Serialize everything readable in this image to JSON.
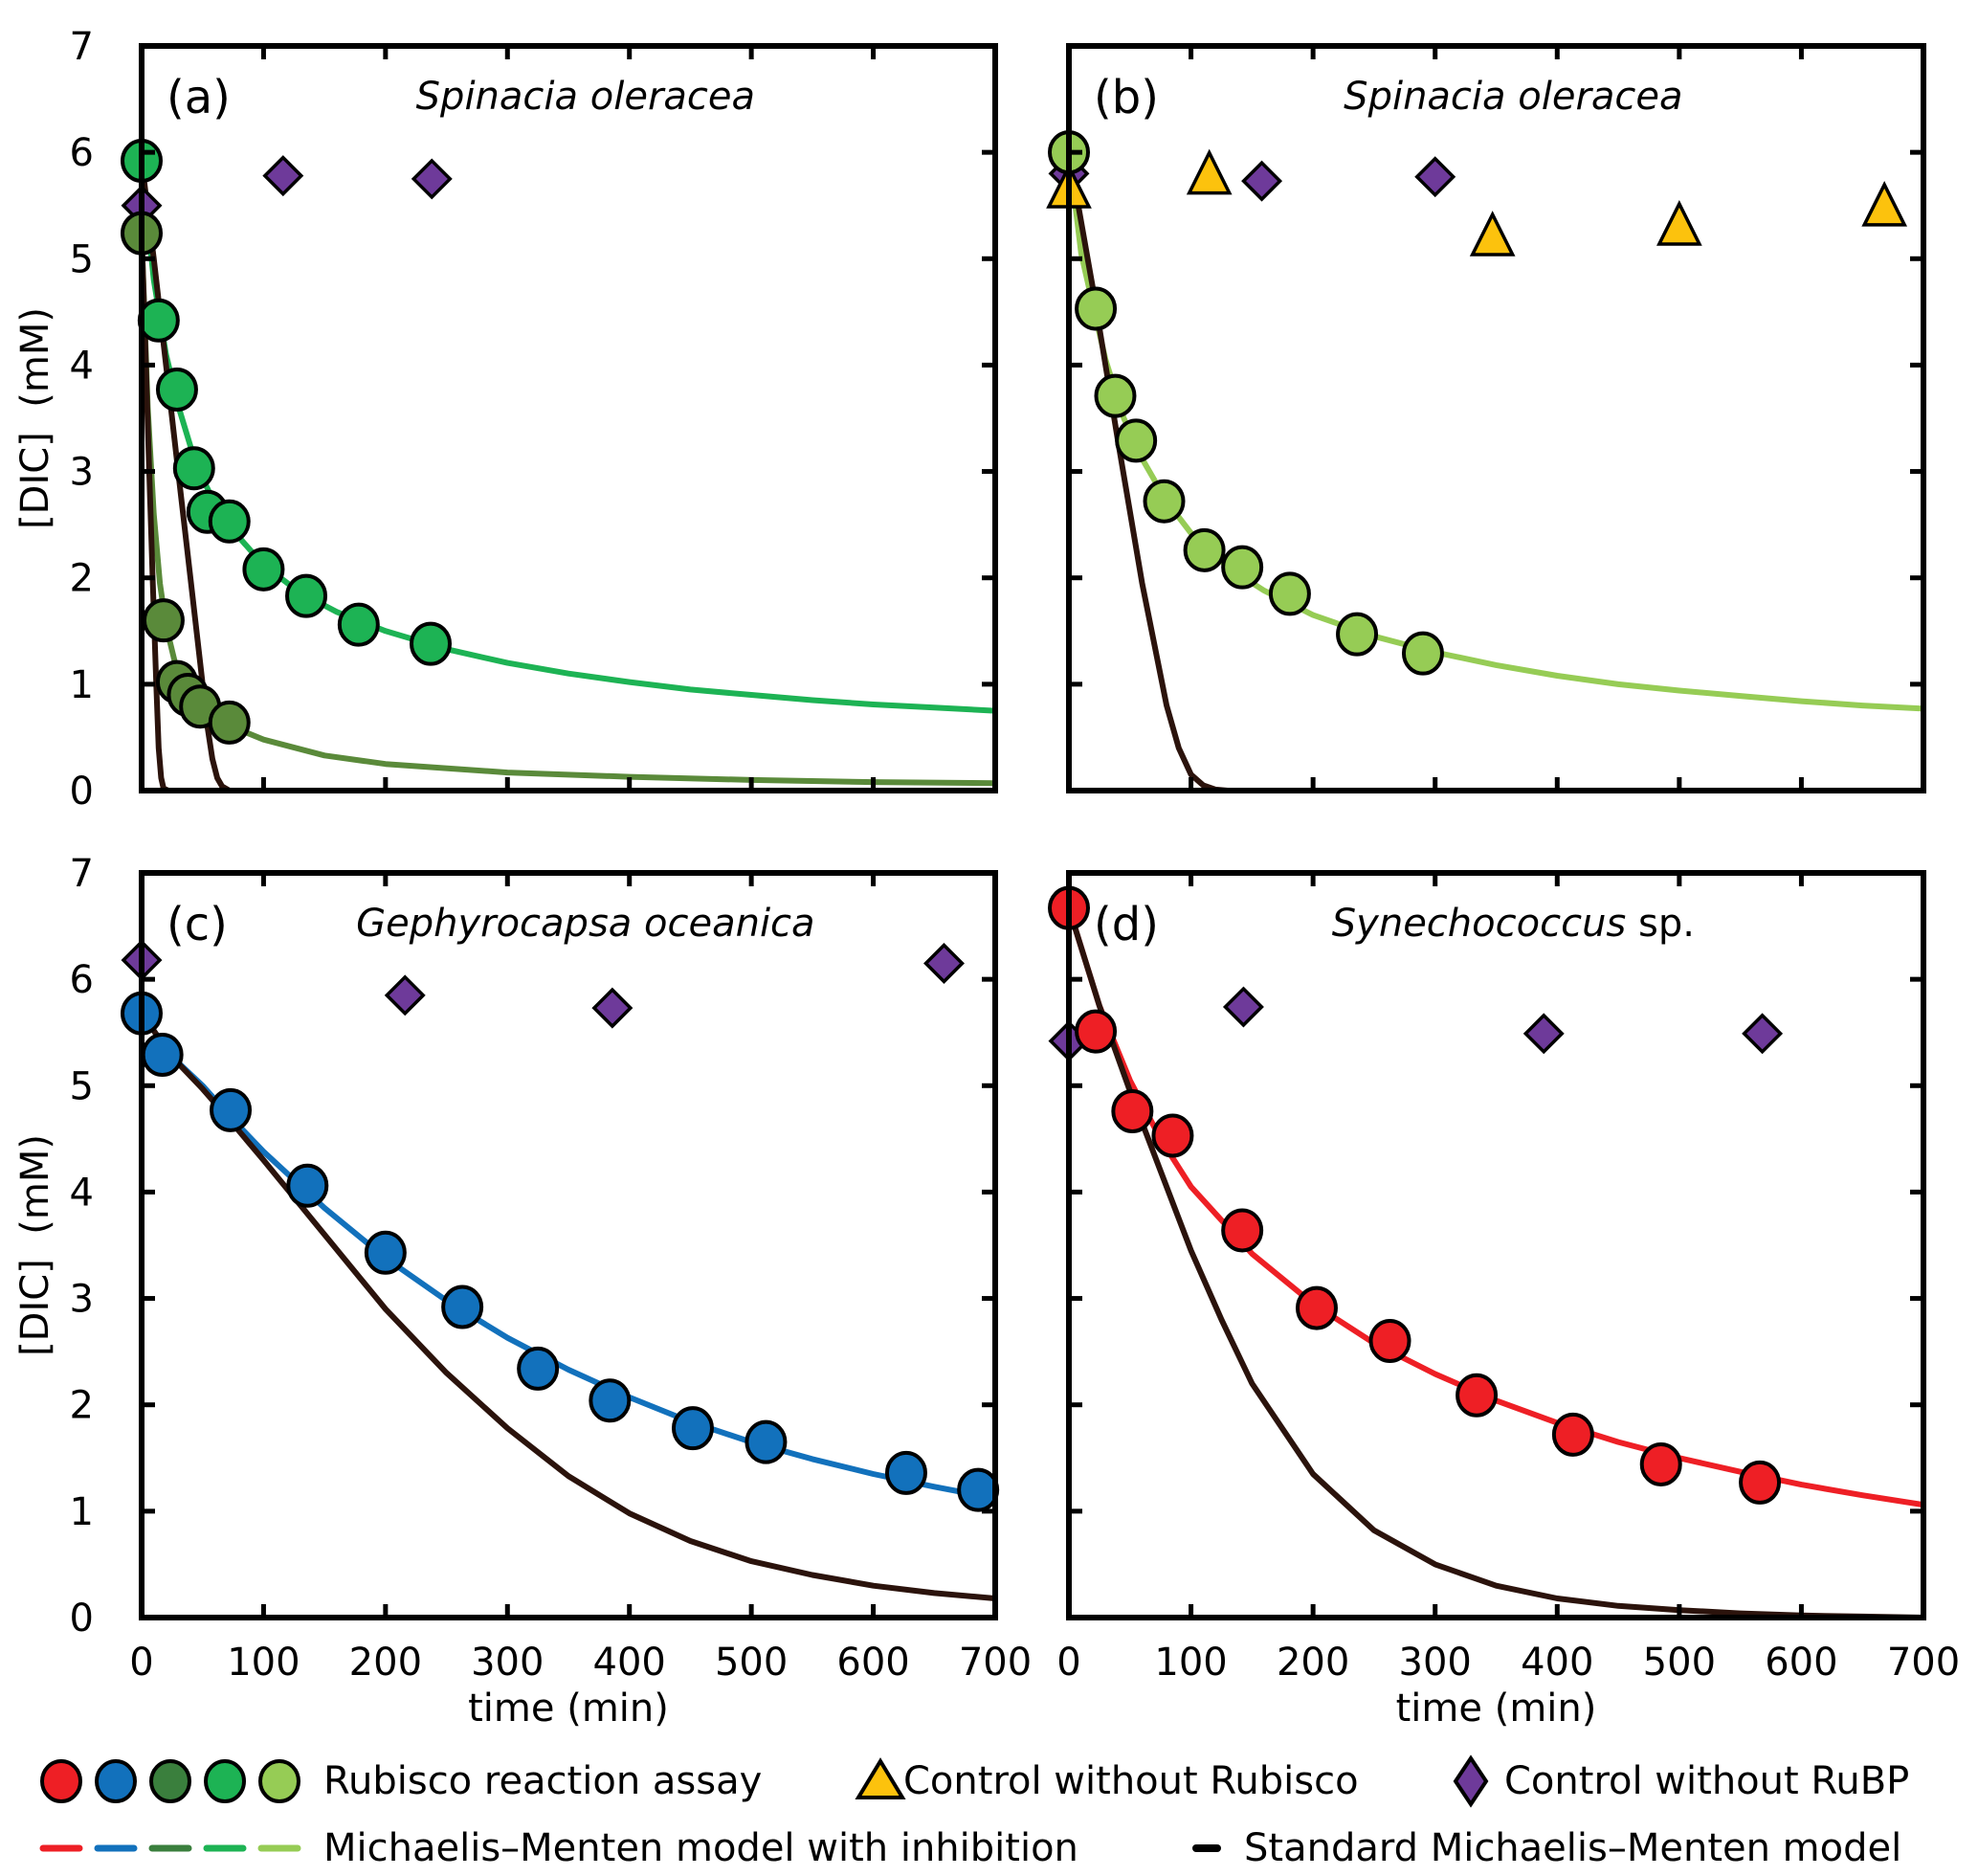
{
  "figure": {
    "legend": {
      "row1": {
        "circles_label": "Rubisco reaction assay",
        "triangle_label": "Control without Rubisco",
        "diamond_label": "Control without RuBP"
      },
      "row2": {
        "inhibition_label": "Michaelis–Menten model with inhibition",
        "standard_label": "Standard Michaelis–Menten model"
      },
      "circle_colors": [
        "#ee1f25",
        "#1271bc",
        "#3a7f3d",
        "#1db354",
        "#96cc55"
      ]
    }
  },
  "colors": {
    "red": "#ee1f25",
    "blue": "#1271bc",
    "dark_green": "#3a7f3d",
    "dark_green_fill": "#5a8a3a",
    "green": "#1db354",
    "light_green": "#96cc55",
    "orange": "#fcc20d",
    "purple": "#6e3a9a",
    "standard_model": "#2b130c"
  },
  "chart_data": [
    {
      "id": "a",
      "type": "scatter",
      "panel_letter": "(a)",
      "title": "Spinacia oleracea",
      "title_italic": "Spinacia oleracea",
      "title_roman": "",
      "xlabel": "",
      "ylabel": "[DIC]  (mM)",
      "xlim": [
        0,
        700
      ],
      "ylim": [
        0,
        7
      ],
      "xticks": [
        0,
        100,
        200,
        300,
        400,
        500,
        600,
        700
      ],
      "yticks": [
        0,
        1,
        2,
        3,
        4,
        5,
        6,
        7
      ],
      "show_xticklabels": false,
      "show_yticklabels": true,
      "series": [
        {
          "name": "Rubisco reaction assay (bright green)",
          "kind": "circle",
          "color": "#1db354",
          "x": [
            0,
            14,
            29,
            43,
            54,
            72,
            100,
            135,
            178,
            237
          ],
          "y": [
            5.92,
            4.42,
            3.77,
            3.03,
            2.62,
            2.53,
            2.08,
            1.83,
            1.56,
            1.38
          ]
        },
        {
          "name": "Rubisco reaction assay (dark green)",
          "kind": "circle",
          "color": "#5a8a3a",
          "x": [
            0,
            18,
            29,
            38,
            48,
            72
          ],
          "y": [
            5.24,
            1.6,
            1.02,
            0.9,
            0.79,
            0.64
          ]
        },
        {
          "name": "Control without RuBP",
          "kind": "diamond",
          "color": "#6e3a9a",
          "x": [
            0,
            116,
            238
          ],
          "y": [
            5.5,
            5.78,
            5.75
          ]
        },
        {
          "name": "MM with inhibition (bright green)",
          "kind": "line",
          "color": "#1db354",
          "x": [
            0,
            10,
            20,
            30,
            45,
            60,
            80,
            100,
            130,
            160,
            200,
            250,
            300,
            350,
            400,
            450,
            500,
            550,
            600,
            650,
            700
          ],
          "y": [
            5.9,
            4.8,
            4.1,
            3.62,
            3.05,
            2.7,
            2.38,
            2.12,
            1.86,
            1.68,
            1.5,
            1.33,
            1.2,
            1.1,
            1.02,
            0.95,
            0.9,
            0.85,
            0.81,
            0.78,
            0.75
          ]
        },
        {
          "name": "MM with inhibition (dark green)",
          "kind": "line",
          "color": "#5a8a3a",
          "x": [
            0,
            5,
            10,
            15,
            20,
            30,
            40,
            50,
            70,
            100,
            150,
            200,
            300,
            400,
            500,
            600,
            700
          ],
          "y": [
            5.24,
            3.6,
            2.6,
            1.95,
            1.55,
            1.08,
            0.88,
            0.76,
            0.62,
            0.48,
            0.33,
            0.25,
            0.17,
            0.13,
            0.1,
            0.08,
            0.07
          ]
        },
        {
          "name": "Standard MM (fast)",
          "kind": "line",
          "color": "#2b130c",
          "x": [
            0,
            3,
            6,
            9,
            12,
            14,
            16,
            18,
            22,
            30
          ],
          "y": [
            5.24,
            4.2,
            3.1,
            2.0,
            1.0,
            0.4,
            0.12,
            0.02,
            0.0,
            0.0
          ]
        },
        {
          "name": "Standard MM (slow)",
          "kind": "line",
          "color": "#2b130c",
          "x": [
            0,
            10,
            20,
            30,
            40,
            48,
            54,
            58,
            62,
            66,
            72,
            80
          ],
          "y": [
            5.92,
            5.0,
            4.0,
            3.0,
            2.0,
            1.2,
            0.6,
            0.3,
            0.12,
            0.04,
            0.0,
            0.0
          ]
        }
      ]
    },
    {
      "id": "b",
      "type": "scatter",
      "panel_letter": "(b)",
      "title": "Spinacia oleracea",
      "title_italic": "Spinacia oleracea",
      "title_roman": "",
      "xlabel": "",
      "ylabel": "",
      "xlim": [
        0,
        700
      ],
      "ylim": [
        0,
        7
      ],
      "xticks": [
        0,
        100,
        200,
        300,
        400,
        500,
        600,
        700
      ],
      "yticks": [
        0,
        1,
        2,
        3,
        4,
        5,
        6,
        7
      ],
      "show_xticklabels": false,
      "show_yticklabels": false,
      "series": [
        {
          "name": "Control without RuBP",
          "kind": "diamond",
          "color": "#6e3a9a",
          "x": [
            0,
            158,
            300
          ],
          "y": [
            5.8,
            5.73,
            5.77
          ]
        },
        {
          "name": "Rubisco reaction assay (light green)",
          "kind": "circle",
          "color": "#96cc55",
          "x": [
            0,
            22,
            38,
            55,
            78,
            111,
            142,
            181,
            236,
            290
          ],
          "y": [
            6.0,
            4.53,
            3.71,
            3.29,
            2.72,
            2.26,
            2.1,
            1.85,
            1.47,
            1.29
          ]
        },
        {
          "name": "Control without Rubisco",
          "kind": "triangle",
          "color": "#fcc20d",
          "x": [
            0,
            115,
            347,
            500,
            668
          ],
          "y": [
            5.65,
            5.78,
            5.2,
            5.3,
            5.48
          ]
        },
        {
          "name": "MM with inhibition (light green)",
          "kind": "line",
          "color": "#96cc55",
          "x": [
            0,
            10,
            20,
            30,
            45,
            60,
            80,
            100,
            130,
            160,
            200,
            250,
            300,
            350,
            400,
            450,
            500,
            550,
            600,
            650,
            700
          ],
          "y": [
            6.0,
            5.05,
            4.55,
            4.05,
            3.5,
            3.12,
            2.72,
            2.42,
            2.1,
            1.88,
            1.65,
            1.45,
            1.3,
            1.18,
            1.08,
            1.0,
            0.94,
            0.89,
            0.84,
            0.8,
            0.77
          ]
        },
        {
          "name": "Standard MM",
          "kind": "line",
          "color": "#2b130c",
          "x": [
            0,
            20,
            40,
            60,
            80,
            90,
            100,
            110,
            120,
            130,
            145
          ],
          "y": [
            6.0,
            4.7,
            3.3,
            1.95,
            0.8,
            0.4,
            0.15,
            0.05,
            0.01,
            0.0,
            0.0
          ]
        }
      ]
    },
    {
      "id": "c",
      "type": "scatter",
      "panel_letter": "(c)",
      "title": "Gephyrocapsa oceanica",
      "title_italic": "Gephyrocapsa oceanica",
      "title_roman": "",
      "xlabel": "time (min)",
      "ylabel": "[DIC]  (mM)",
      "xlim": [
        0,
        700
      ],
      "ylim": [
        0,
        7
      ],
      "xticks": [
        0,
        100,
        200,
        300,
        400,
        500,
        600,
        700
      ],
      "yticks": [
        0,
        1,
        2,
        3,
        4,
        5,
        6,
        7
      ],
      "show_xticklabels": true,
      "show_yticklabels": true,
      "series": [
        {
          "name": "Control without RuBP",
          "kind": "diamond",
          "color": "#6e3a9a",
          "x": [
            0,
            216,
            386,
            658
          ],
          "y": [
            6.18,
            5.85,
            5.73,
            6.15
          ]
        },
        {
          "name": "Rubisco reaction assay (blue)",
          "kind": "circle",
          "color": "#1271bc",
          "x": [
            0,
            17,
            73,
            136,
            200,
            263,
            325,
            384,
            452,
            512,
            627,
            686
          ],
          "y": [
            5.68,
            5.29,
            4.77,
            4.06,
            3.43,
            2.92,
            2.34,
            2.04,
            1.78,
            1.65,
            1.36,
            1.2
          ]
        },
        {
          "name": "MM with inhibition (blue)",
          "kind": "line",
          "color": "#1271bc",
          "x": [
            0,
            25,
            50,
            75,
            100,
            150,
            200,
            250,
            300,
            350,
            400,
            450,
            500,
            550,
            600,
            650,
            700
          ],
          "y": [
            5.68,
            5.27,
            5.0,
            4.68,
            4.38,
            3.85,
            3.38,
            2.98,
            2.63,
            2.33,
            2.07,
            1.84,
            1.65,
            1.49,
            1.35,
            1.23,
            1.12
          ]
        },
        {
          "name": "Standard MM",
          "kind": "line",
          "color": "#2b130c",
          "x": [
            0,
            25,
            50,
            75,
            100,
            150,
            200,
            250,
            300,
            350,
            400,
            450,
            500,
            550,
            600,
            650,
            700
          ],
          "y": [
            5.68,
            5.27,
            4.97,
            4.64,
            4.3,
            3.6,
            2.9,
            2.3,
            1.78,
            1.33,
            0.98,
            0.72,
            0.53,
            0.4,
            0.3,
            0.23,
            0.18
          ]
        }
      ]
    },
    {
      "id": "d",
      "type": "scatter",
      "panel_letter": "(d)",
      "title": "Synechococcus sp.",
      "title_italic": "Synechococcus",
      "title_roman": " sp.",
      "xlabel": "time (min)",
      "ylabel": "",
      "xlim": [
        0,
        700
      ],
      "ylim": [
        0,
        7
      ],
      "xticks": [
        0,
        100,
        200,
        300,
        400,
        500,
        600,
        700
      ],
      "yticks": [
        0,
        1,
        2,
        3,
        4,
        5,
        6,
        7
      ],
      "show_xticklabels": true,
      "show_yticklabels": false,
      "series": [
        {
          "name": "Control without RuBP",
          "kind": "diamond",
          "color": "#6e3a9a",
          "x": [
            0,
            143,
            389,
            568
          ],
          "y": [
            5.42,
            5.74,
            5.49,
            5.49
          ]
        },
        {
          "name": "Rubisco reaction assay (red)",
          "kind": "circle",
          "color": "#ee1f25",
          "x": [
            0,
            22,
            52,
            85,
            142,
            203,
            263,
            334,
            413,
            485,
            566
          ],
          "y": [
            6.67,
            5.51,
            4.76,
            4.53,
            3.64,
            2.91,
            2.6,
            2.09,
            1.72,
            1.44,
            1.27
          ]
        },
        {
          "name": "MM with inhibition (red)",
          "kind": "line",
          "color": "#ee1f25",
          "x": [
            0,
            25,
            50,
            75,
            100,
            150,
            200,
            250,
            300,
            350,
            400,
            450,
            500,
            550,
            600,
            650,
            700
          ],
          "y": [
            6.67,
            5.75,
            5.05,
            4.5,
            4.05,
            3.42,
            2.95,
            2.58,
            2.29,
            2.04,
            1.83,
            1.65,
            1.5,
            1.37,
            1.25,
            1.15,
            1.06
          ]
        },
        {
          "name": "Standard MM",
          "kind": "line",
          "color": "#2b130c",
          "x": [
            0,
            25,
            50,
            75,
            100,
            125,
            150,
            200,
            250,
            300,
            350,
            400,
            450,
            500,
            550,
            600,
            650,
            700
          ],
          "y": [
            6.67,
            5.75,
            4.95,
            4.2,
            3.45,
            2.8,
            2.2,
            1.35,
            0.82,
            0.5,
            0.3,
            0.18,
            0.11,
            0.07,
            0.04,
            0.02,
            0.01,
            0.0
          ]
        }
      ]
    }
  ]
}
